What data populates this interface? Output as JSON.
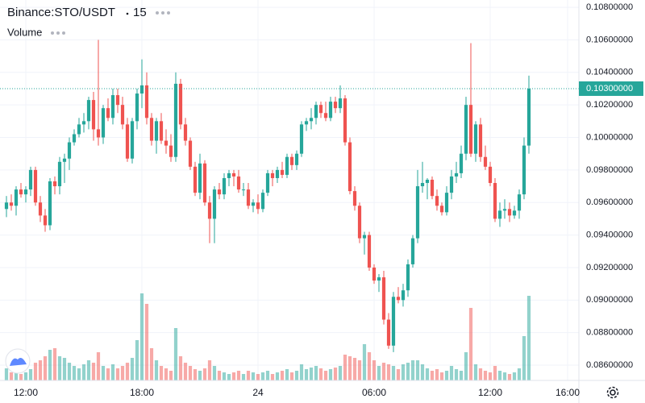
{
  "chart_data": {
    "type": "candlestick",
    "symbol": "Binance:STO/USDT",
    "interval": "15",
    "volume_label": "Volume",
    "up_color": "#26a69a",
    "down_color": "#ef5350",
    "grid": true,
    "open": [
      0.0956,
      0.096,
      0.0958,
      0.0968,
      0.0965,
      0.0968,
      0.098,
      0.096,
      0.0952,
      0.0946,
      0.0973,
      0.097,
      0.0985,
      0.0987,
      0.0997,
      0.1002,
      0.1008,
      0.101,
      0.1023,
      0.1005,
      0.1,
      0.1018,
      0.1012,
      0.1026,
      0.102,
      0.1008,
      0.0987,
      0.101,
      0.1027,
      0.1032,
      0.1012,
      0.0998,
      0.101,
      0.0998,
      0.0995,
      0.0988,
      0.1033,
      0.1008,
      0.0998,
      0.0982,
      0.0966,
      0.0984,
      0.096,
      0.095,
      0.0968,
      0.0965,
      0.0975,
      0.0978,
      0.0976,
      0.0968,
      0.0968,
      0.0958,
      0.096,
      0.0956,
      0.0966,
      0.0978,
      0.0975,
      0.098,
      0.0977,
      0.0988,
      0.0983,
      0.099,
      0.1008,
      0.101,
      0.1012,
      0.102,
      0.1015,
      0.1012,
      0.1022,
      0.1018,
      0.1024,
      0.0997,
      0.0967,
      0.0958,
      0.0938,
      0.094,
      0.092,
      0.0912,
      0.0914,
      0.0888,
      0.0872,
      0.0902,
      0.09,
      0.0906,
      0.0922,
      0.0938,
      0.097,
      0.0972,
      0.0974,
      0.0964,
      0.0958,
      0.0954,
      0.0966,
      0.0976,
      0.0978,
      0.099,
      0.102,
      0.099,
      0.1008,
      0.0988,
      0.0982,
      0.0972,
      0.095,
      0.0955,
      0.0956,
      0.0952,
      0.0955,
      0.0965,
      0.0995
    ],
    "high": [
      0.0964,
      0.0965,
      0.097,
      0.0972,
      0.097,
      0.0982,
      0.0982,
      0.0964,
      0.0956,
      0.0975,
      0.0976,
      0.0988,
      0.099,
      0.1,
      0.1005,
      0.1012,
      0.1015,
      0.1025,
      0.1028,
      0.106,
      0.102,
      0.1024,
      0.103,
      0.103,
      0.1025,
      0.1012,
      0.1012,
      0.103,
      0.1048,
      0.104,
      0.1015,
      0.1012,
      0.1015,
      0.1005,
      0.1002,
      0.104,
      0.1036,
      0.1012,
      0.1,
      0.0985,
      0.099,
      0.0986,
      0.0964,
      0.097,
      0.0972,
      0.0978,
      0.098,
      0.098,
      0.098,
      0.0972,
      0.0972,
      0.0962,
      0.0965,
      0.0968,
      0.098,
      0.098,
      0.0982,
      0.0985,
      0.099,
      0.099,
      0.0992,
      0.101,
      0.1012,
      0.1018,
      0.1022,
      0.1022,
      0.1022,
      0.1025,
      0.1025,
      0.1032,
      0.1026,
      0.1,
      0.097,
      0.096,
      0.0942,
      0.0942,
      0.0922,
      0.0916,
      0.0918,
      0.0892,
      0.0905,
      0.0908,
      0.091,
      0.0925,
      0.094,
      0.098,
      0.0985,
      0.0975,
      0.0976,
      0.0968,
      0.096,
      0.097,
      0.098,
      0.0985,
      0.0995,
      0.1025,
      0.1058,
      0.101,
      0.1012,
      0.0995,
      0.0985,
      0.0975,
      0.096,
      0.0962,
      0.096,
      0.0958,
      0.0968,
      0.1,
      0.1038
    ],
    "low": [
      0.0951,
      0.0955,
      0.0952,
      0.0963,
      0.096,
      0.0964,
      0.0958,
      0.0948,
      0.0942,
      0.0943,
      0.0965,
      0.0965,
      0.0972,
      0.098,
      0.0995,
      0.1,
      0.1003,
      0.1005,
      0.0998,
      0.0995,
      0.0996,
      0.101,
      0.1008,
      0.1015,
      0.1005,
      0.0985,
      0.0984,
      0.1005,
      0.1018,
      0.1008,
      0.0995,
      0.099,
      0.0996,
      0.099,
      0.0985,
      0.0985,
      0.1005,
      0.0995,
      0.098,
      0.0964,
      0.0962,
      0.0958,
      0.0935,
      0.0935,
      0.0962,
      0.0962,
      0.097,
      0.097,
      0.0966,
      0.0964,
      0.0956,
      0.0954,
      0.0953,
      0.0954,
      0.0964,
      0.097,
      0.0972,
      0.0975,
      0.0975,
      0.098,
      0.098,
      0.0988,
      0.1004,
      0.1005,
      0.1008,
      0.1012,
      0.101,
      0.101,
      0.1015,
      0.1015,
      0.0995,
      0.0965,
      0.0955,
      0.0935,
      0.0928,
      0.0918,
      0.091,
      0.0905,
      0.0885,
      0.087,
      0.0868,
      0.0898,
      0.0896,
      0.0902,
      0.092,
      0.0935,
      0.0966,
      0.0962,
      0.0962,
      0.0955,
      0.0952,
      0.0952,
      0.0962,
      0.0972,
      0.0975,
      0.0986,
      0.0988,
      0.0985,
      0.0985,
      0.098,
      0.097,
      0.0948,
      0.0945,
      0.095,
      0.0948,
      0.095,
      0.095,
      0.0962,
      0.099
    ],
    "close": [
      0.096,
      0.0958,
      0.0968,
      0.0965,
      0.0968,
      0.098,
      0.096,
      0.0952,
      0.0946,
      0.0973,
      0.097,
      0.0985,
      0.0987,
      0.0997,
      0.1002,
      0.1008,
      0.101,
      0.1023,
      0.1005,
      0.1,
      0.1018,
      0.1012,
      0.1026,
      0.102,
      0.1008,
      0.0987,
      0.101,
      0.1027,
      0.1032,
      0.1012,
      0.0998,
      0.101,
      0.0998,
      0.0995,
      0.0988,
      0.1033,
      0.1008,
      0.0998,
      0.0982,
      0.0966,
      0.0984,
      0.096,
      0.095,
      0.0968,
      0.0965,
      0.0975,
      0.0978,
      0.0976,
      0.0968,
      0.0968,
      0.0958,
      0.096,
      0.0956,
      0.0966,
      0.0978,
      0.0975,
      0.098,
      0.0977,
      0.0988,
      0.0983,
      0.099,
      0.1008,
      0.101,
      0.1012,
      0.102,
      0.1015,
      0.1012,
      0.1022,
      0.1018,
      0.1024,
      0.0997,
      0.0967,
      0.0958,
      0.0938,
      0.094,
      0.092,
      0.0912,
      0.0914,
      0.0888,
      0.0872,
      0.0902,
      0.09,
      0.0906,
      0.0922,
      0.0938,
      0.097,
      0.0972,
      0.0974,
      0.0964,
      0.0958,
      0.0954,
      0.0966,
      0.0976,
      0.0978,
      0.099,
      0.102,
      0.099,
      0.1008,
      0.0988,
      0.0982,
      0.0972,
      0.095,
      0.0955,
      0.0956,
      0.0952,
      0.0955,
      0.0965,
      0.0995,
      0.103
    ],
    "volume": [
      15,
      10,
      12,
      8,
      10,
      14,
      22,
      25,
      30,
      38,
      40,
      30,
      28,
      22,
      18,
      15,
      20,
      25,
      22,
      35,
      18,
      15,
      20,
      15,
      18,
      22,
      28,
      50,
      108,
      95,
      40,
      25,
      18,
      15,
      12,
      65,
      30,
      22,
      18,
      14,
      12,
      15,
      25,
      18,
      12,
      10,
      8,
      10,
      12,
      8,
      12,
      10,
      8,
      10,
      12,
      8,
      10,
      12,
      14,
      10,
      12,
      20,
      14,
      16,
      18,
      15,
      12,
      14,
      16,
      18,
      32,
      30,
      28,
      25,
      45,
      35,
      25,
      18,
      22,
      20,
      18,
      14,
      20,
      22,
      25,
      25,
      20,
      15,
      12,
      14,
      10,
      12,
      18,
      14,
      12,
      35,
      90,
      20,
      15,
      12,
      10,
      18,
      12,
      10,
      8,
      10,
      15,
      55,
      105
    ],
    "xlim": [
      -1.333,
      118.333
    ],
    "xticks": [
      {
        "value": 4,
        "label": "12:00"
      },
      {
        "value": 28,
        "label": "18:00"
      },
      {
        "value": 52,
        "label": "24"
      },
      {
        "value": 76,
        "label": "06:00"
      },
      {
        "value": 100,
        "label": "12:00"
      },
      {
        "value": 116,
        "label": "16:00"
      }
    ],
    "ylim": [
      0.08506,
      0.10845
    ],
    "yticks": [
      {
        "value": 0.108,
        "label": "0.10800000"
      },
      {
        "value": 0.106,
        "label": "0.10600000"
      },
      {
        "value": 0.104,
        "label": "0.10400000"
      },
      {
        "value": 0.102,
        "label": "0.10200000"
      },
      {
        "value": 0.1,
        "label": "0.10000000"
      },
      {
        "value": 0.098,
        "label": "0.09800000"
      },
      {
        "value": 0.096,
        "label": "0.09600000"
      },
      {
        "value": 0.094,
        "label": "0.09400000"
      },
      {
        "value": 0.092,
        "label": "0.09200000"
      },
      {
        "value": 0.09,
        "label": "0.09000000"
      },
      {
        "value": 0.088,
        "label": "0.08800000"
      },
      {
        "value": 0.086,
        "label": "0.08600000"
      }
    ],
    "last_price": {
      "value": 0.103,
      "label": "0.10300000"
    }
  }
}
